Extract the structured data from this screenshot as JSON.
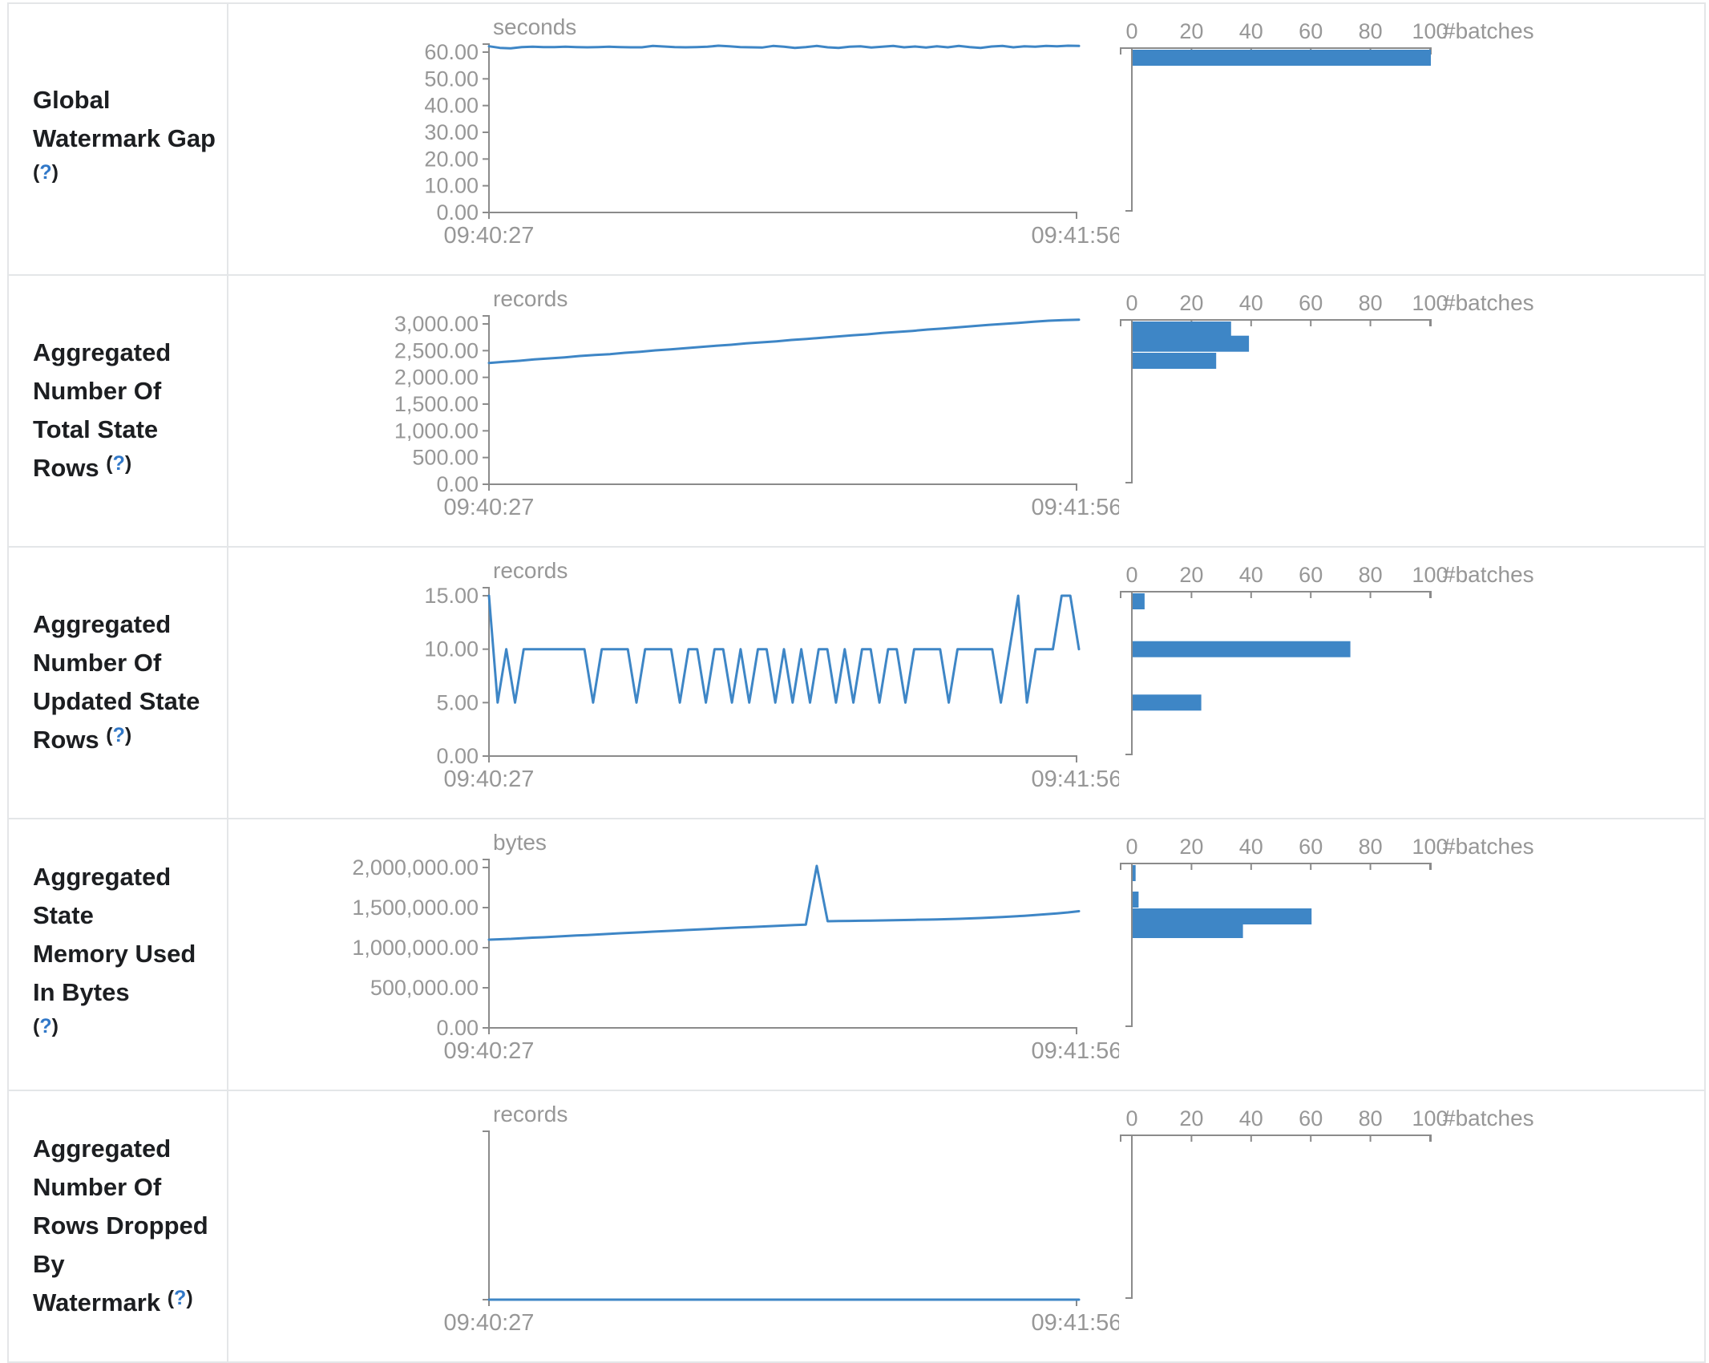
{
  "colors": {
    "series": "#3e86c6",
    "bar": "#3e86c6",
    "axis": "#8b8b8b",
    "tick_text": "#979797",
    "title_text": "#1c1e21",
    "help_blue": "#3178c8",
    "border": "#e4e6e8",
    "background": "#ffffff"
  },
  "chart_data": {
    "type": "line",
    "description": "Streaming query statistics: five metric rows, each with a value-over-time line chart (left) and a value-distribution histogram of batch counts (right)",
    "x_tick_labels": [
      "09:40:27",
      "09:41:56"
    ],
    "batches_axis": {
      "label": "#batches",
      "ticks": [
        0,
        20,
        40,
        60,
        80,
        100
      ],
      "max": 100
    },
    "rows": [
      {
        "title": "Global Watermark Gap",
        "title_lines": [
          "Global Watermark Gap",
          "(?)"
        ],
        "help": "(?)",
        "unit": "seconds",
        "y_max": 63,
        "y_ticks": [
          {
            "v": 0,
            "label": "0.00"
          },
          {
            "v": 10,
            "label": "10.00"
          },
          {
            "v": 20,
            "label": "20.00"
          },
          {
            "v": 30,
            "label": "30.00"
          },
          {
            "v": 40,
            "label": "40.00"
          },
          {
            "v": 50,
            "label": "50.00"
          },
          {
            "v": 60,
            "label": "60.00"
          }
        ],
        "timeline": [
          62.2,
          61.6,
          61.4,
          61.9,
          62.0,
          61.9,
          61.9,
          62.0,
          61.9,
          61.8,
          61.9,
          62.0,
          61.9,
          61.8,
          61.8,
          62.3,
          62.1,
          61.9,
          61.8,
          61.9,
          62.0,
          62.4,
          62.2,
          61.9,
          61.8,
          61.7,
          62.3,
          62.0,
          61.6,
          61.9,
          62.3,
          61.8,
          61.6,
          62.0,
          62.2,
          61.7,
          62.0,
          62.3,
          61.8,
          62.1,
          61.7,
          62.2,
          61.8,
          62.3,
          61.9,
          61.6,
          62.1,
          62.3,
          61.8,
          62.2,
          62.0,
          62.3,
          62.2,
          62.4,
          62.3
        ],
        "histogram": [
          {
            "value": 61.5,
            "count": 100
          }
        ]
      },
      {
        "title": "Aggregated Number Of Total State Rows",
        "title_lines": [
          "Aggregated Number Of",
          "Total State Rows (?)"
        ],
        "help": "(?)",
        "unit": "records",
        "y_max": 3150,
        "y_ticks": [
          {
            "v": 0,
            "label": "0.00"
          },
          {
            "v": 500,
            "label": "500.00"
          },
          {
            "v": 1000,
            "label": "1,000.00"
          },
          {
            "v": 1500,
            "label": "1,500.00"
          },
          {
            "v": 2000,
            "label": "2,000.00"
          },
          {
            "v": 2500,
            "label": "2,500.00"
          },
          {
            "v": 3000,
            "label": "3,000.00"
          }
        ],
        "timeline": [
          2270,
          2290,
          2310,
          2335,
          2355,
          2375,
          2400,
          2420,
          2435,
          2460,
          2480,
          2505,
          2525,
          2545,
          2570,
          2590,
          2610,
          2635,
          2655,
          2675,
          2700,
          2720,
          2740,
          2765,
          2785,
          2805,
          2830,
          2850,
          2870,
          2895,
          2915,
          2935,
          2960,
          2980,
          3000,
          3020,
          3040,
          3060,
          3070,
          3080
        ],
        "histogram": [
          {
            "value": 2950,
            "count": 33
          },
          {
            "value": 2630,
            "count": 39
          },
          {
            "value": 2310,
            "count": 28
          }
        ]
      },
      {
        "title": "Aggregated Number Of Updated State Rows",
        "title_lines": [
          "Aggregated Number Of",
          "Updated State Rows (?)"
        ],
        "help": "(?)",
        "unit": "records",
        "y_max": 15.75,
        "y_ticks": [
          {
            "v": 0,
            "label": "0.00"
          },
          {
            "v": 5,
            "label": "5.00"
          },
          {
            "v": 10,
            "label": "10.00"
          },
          {
            "v": 15,
            "label": "15.00"
          }
        ],
        "timeline": [
          15,
          5,
          10,
          5,
          10,
          10,
          10,
          10,
          10,
          10,
          10,
          10,
          5,
          10,
          10,
          10,
          10,
          5,
          10,
          10,
          10,
          10,
          5,
          10,
          10,
          5,
          10,
          10,
          5,
          10,
          5,
          10,
          10,
          5,
          10,
          5,
          10,
          5,
          10,
          10,
          5,
          10,
          5,
          10,
          10,
          5,
          10,
          10,
          5,
          10,
          10,
          10,
          10,
          5,
          10,
          10,
          10,
          10,
          10,
          5,
          10,
          15,
          5,
          10,
          10,
          10,
          15,
          15,
          10
        ],
        "histogram": [
          {
            "value": 15,
            "count": 4
          },
          {
            "value": 10,
            "count": 73
          },
          {
            "value": 5,
            "count": 23
          }
        ]
      },
      {
        "title": "Aggregated State Memory Used In Bytes",
        "title_lines": [
          "Aggregated State",
          "Memory Used In Bytes",
          "(?)"
        ],
        "help": "(?)",
        "unit": "bytes",
        "y_max": 2100000,
        "y_ticks": [
          {
            "v": 0,
            "label": "0.00"
          },
          {
            "v": 500000,
            "label": "500,000.00"
          },
          {
            "v": 1000000,
            "label": "1,000,000.00"
          },
          {
            "v": 1500000,
            "label": "1,500,000.00"
          },
          {
            "v": 2000000,
            "label": "2,000,000.00"
          }
        ],
        "timeline": [
          1100000,
          1105000,
          1110000,
          1118000,
          1125000,
          1130000,
          1138000,
          1145000,
          1152000,
          1158000,
          1165000,
          1172000,
          1180000,
          1186000,
          1192000,
          1200000,
          1206000,
          1212000,
          1220000,
          1226000,
          1232000,
          1240000,
          1246000,
          1252000,
          1258000,
          1264000,
          1270000,
          1276000,
          1282000,
          1288000,
          2020000,
          1330000,
          1332000,
          1334000,
          1336000,
          1338000,
          1340000,
          1342000,
          1345000,
          1348000,
          1350000,
          1353000,
          1356000,
          1360000,
          1365000,
          1370000,
          1376000,
          1382000,
          1390000,
          1398000,
          1408000,
          1418000,
          1428000,
          1440000,
          1455000
        ],
        "histogram": [
          {
            "value": 2020000,
            "count": 1
          },
          {
            "value": 1600000,
            "count": 2
          },
          {
            "value": 1390000,
            "count": 60
          },
          {
            "value": 1220000,
            "count": 37
          }
        ]
      },
      {
        "title": "Aggregated Number Of Rows Dropped By Watermark",
        "title_lines": [
          "Aggregated Number Of",
          "Rows Dropped By",
          "Watermark (?)"
        ],
        "help": "(?)",
        "unit": "records",
        "y_max": 1,
        "y_ticks": [],
        "timeline": [
          0,
          0,
          0,
          0,
          0,
          0,
          0,
          0,
          0,
          0
        ],
        "histogram": []
      }
    ]
  }
}
